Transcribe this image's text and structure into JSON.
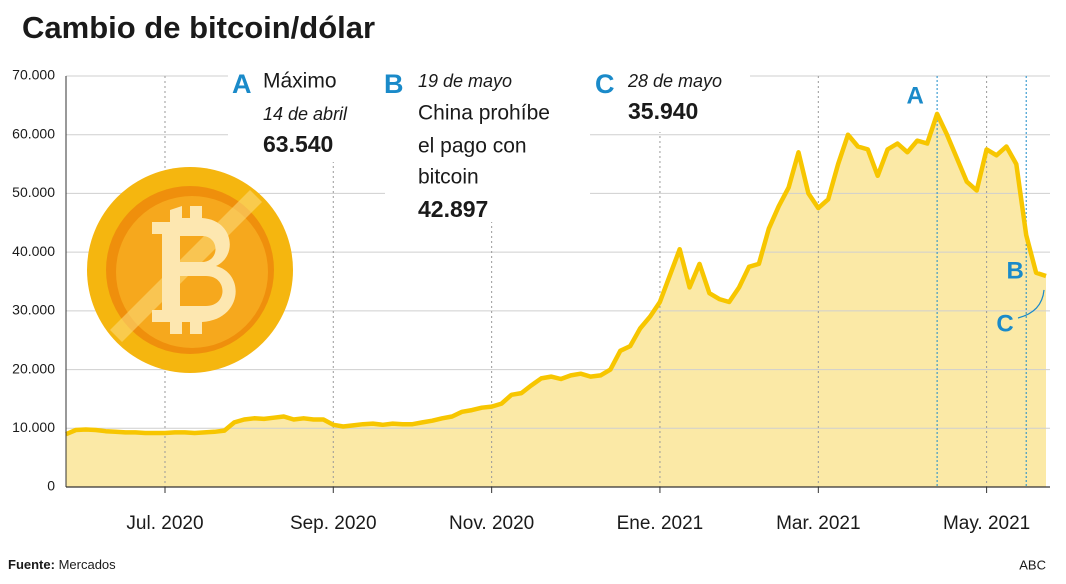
{
  "chart_data": {
    "type": "area",
    "title": "Cambio de bitcoin/dólar",
    "categories": [
      null,
      null,
      null,
      null,
      null,
      null,
      null,
      null,
      null,
      null,
      "Jul. 2020",
      null,
      null,
      null,
      null,
      null,
      null,
      null,
      null,
      null,
      null,
      null,
      null,
      null,
      null,
      null,
      null,
      "Sep. 2020",
      null,
      null,
      null,
      null,
      null,
      null,
      null,
      null,
      null,
      null,
      null,
      null,
      null,
      null,
      null,
      "Nov. 2020",
      null,
      null,
      null,
      null,
      null,
      null,
      null,
      null,
      null,
      null,
      null,
      null,
      null,
      null,
      null,
      null,
      "Ene. 2021",
      null,
      null,
      null,
      null,
      null,
      null,
      null,
      null,
      null,
      null,
      null,
      null,
      null,
      null,
      null,
      "Mar. 2021",
      null,
      null,
      null,
      null,
      null,
      null,
      null,
      null,
      null,
      null,
      null,
      null,
      null,
      null,
      null,
      null,
      "May. 2021",
      null,
      null,
      null,
      null,
      null,
      null
    ],
    "series": [
      {
        "color": "#f7c600",
        "fill": "#fbe9a6",
        "values": [
          9000,
          9700,
          9800,
          9700,
          9500,
          9400,
          9300,
          9300,
          9200,
          9200,
          9200,
          9300,
          9300,
          9200,
          9300,
          9400,
          9600,
          11000,
          11500,
          11700,
          11600,
          11800,
          12000,
          11500,
          11700,
          11500,
          11500,
          10600,
          10300,
          10500,
          10700,
          10800,
          10600,
          10800,
          10700,
          10700,
          11000,
          11300,
          11700,
          12000,
          12800,
          13100,
          13500,
          13700,
          14200,
          15700,
          16000,
          17300,
          18500,
          18800,
          18400,
          19000,
          19300,
          18800,
          19000,
          20000,
          23200,
          24000,
          27000,
          29000,
          31500,
          36000,
          40500,
          34000,
          38000,
          33000,
          32000,
          31500,
          34000,
          37500,
          38000,
          44000,
          47800,
          51000,
          57000,
          50000,
          47500,
          49000,
          55000,
          60000,
          58000,
          57500,
          53000,
          57500,
          58500,
          57000,
          59000,
          58500,
          63540,
          60000,
          56000,
          52000,
          50500,
          57500,
          56500,
          58000,
          55000,
          42897,
          36500,
          35940
        ]
      }
    ],
    "ylim": [
      0,
      70000
    ],
    "yticks": [
      0,
      {
        "value": 10000,
        "label": "10.000"
      },
      {
        "value": 20000,
        "label": "20.000"
      },
      {
        "value": 30000,
        "label": "30.000"
      },
      {
        "value": 40000,
        "label": "40.000"
      },
      {
        "value": 50000,
        "label": "50.000"
      },
      {
        "value": 60000,
        "label": "60.000"
      },
      {
        "value": 70000,
        "label": "70.000"
      }
    ],
    "grid": true,
    "annotations": [
      {
        "letter": "A",
        "lines": [
          "Máximo",
          "14 de abril"
        ],
        "value": 63540,
        "value_label": "63.540"
      },
      {
        "letter": "B",
        "lines": [
          "19 de mayo",
          "China prohíbe",
          "el pago con",
          "bitcoin"
        ],
        "value": 42897,
        "value_label": "42.897"
      },
      {
        "letter": "C",
        "lines": [
          "28 de mayo"
        ],
        "value": 35940,
        "value_label": "35.940"
      }
    ],
    "source_label": "Fuente:",
    "source": "Mercados",
    "credit": "ABC"
  }
}
